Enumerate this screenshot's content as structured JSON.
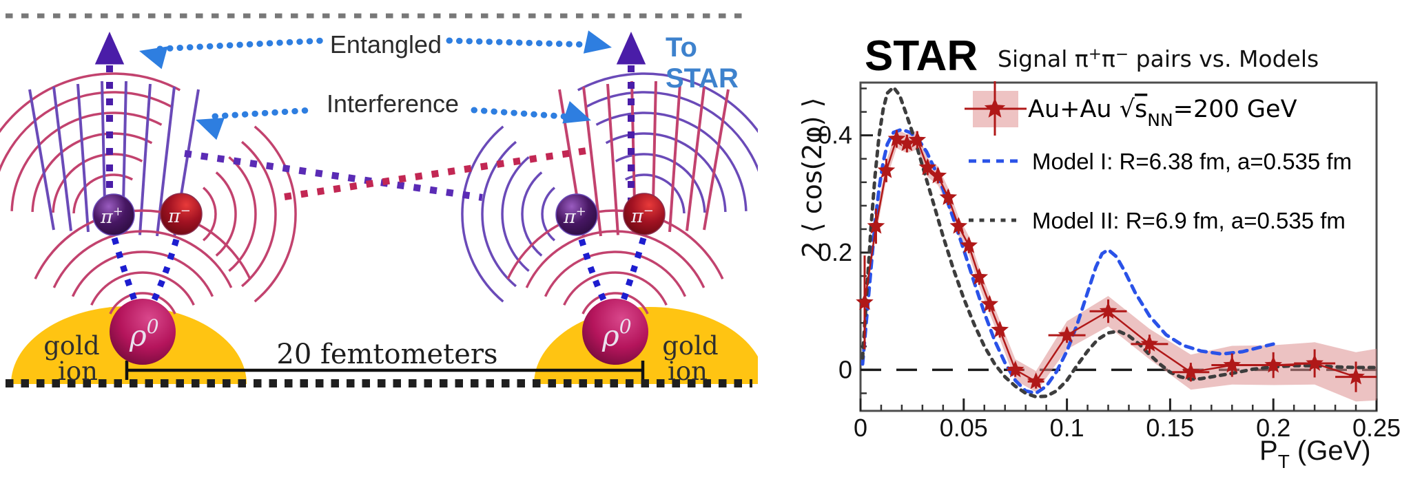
{
  "figure": {
    "background": "#ffffff"
  },
  "diagram": {
    "entangled_label": "Entangled",
    "interference_label": "Interference",
    "to_star_line1": "To",
    "to_star_line2": "STAR",
    "gold_ion_word1": "gold",
    "gold_ion_word2": "ion",
    "distance_label": "20 femtometers",
    "rho_base": "ρ",
    "rho_sup": "0",
    "pi_plus_base": "π",
    "pi_plus_sup": "+",
    "pi_minus_base": "π",
    "pi_minus_sup": "−",
    "colors": {
      "gold": "#FFC412",
      "wave_red": "#c2426e",
      "wave_purple": "#6a4ab8",
      "arrow_blue": "#2e7ee0",
      "arrow_purple": "#4a1da8",
      "cross_red": "#c22753",
      "cross_purple": "#5a2bb5",
      "funnel_blue": "#1d1dcf",
      "to_star_blue": "#3e82cd",
      "label_dark": "#2b2b2b"
    }
  },
  "chart": {
    "title": "STAR",
    "subtitle_pre": "Signal π",
    "subtitle_sup1": "+",
    "subtitle_mid": "π",
    "subtitle_sup2": "−",
    "subtitle_post": " pairs vs. Models",
    "ylabel": "2 ⟨ cos(2φ) ⟩",
    "xlabel_main": "P",
    "xlabel_sub": "T",
    "xlabel_rest": " (GeV)",
    "legend": [
      {
        "pre": "Au+Au √",
        "s": "s",
        "sub": "NN",
        "post": "=200 GeV"
      },
      {
        "text": "Model I: R=6.38 fm, a=0.535 fm"
      },
      {
        "text": "Model II: R=6.9 fm, a=0.535 fm"
      }
    ]
  },
  "chart_data": {
    "type": "line",
    "title": "STAR  Signal π⁺π⁻ pairs vs. Models",
    "xlabel": "P_T (GeV)",
    "ylabel": "2 ⟨ cos(2φ) ⟩",
    "xlim": [
      0,
      0.25
    ],
    "ylim": [
      -0.07,
      0.49
    ],
    "grid": false,
    "legend_position": "top-right-inside",
    "zero_line": true,
    "xticks": {
      "major": [
        {
          "v": 0,
          "label": "0"
        },
        {
          "v": 0.05,
          "label": "0.05"
        },
        {
          "v": 0.1,
          "label": "0.1"
        },
        {
          "v": 0.15,
          "label": "0.15"
        },
        {
          "v": 0.2,
          "label": "0.2"
        },
        {
          "v": 0.25,
          "label": "0.25"
        }
      ],
      "minor_step": 0.01
    },
    "yticks": {
      "major": [
        {
          "v": 0,
          "label": "0"
        },
        {
          "v": 0.2,
          "label": "0.2"
        },
        {
          "v": 0.4,
          "label": "0.4"
        }
      ],
      "minor_step": 0.04
    },
    "series": [
      {
        "name": "Au+Au √s_NN=200 GeV",
        "type": "data-with-band",
        "color": "#b01818",
        "band_color": "#dd8f8f",
        "points": [
          {
            "pt": 0.002,
            "v": 0.115,
            "ex": 0,
            "ey": 0.08,
            "sys": 0.015
          },
          {
            "pt": 0.0075,
            "v": 0.245,
            "ex": 0,
            "ey": 0.03,
            "sys": 0.015
          },
          {
            "pt": 0.0125,
            "v": 0.34,
            "ex": 0,
            "ey": 0.02,
            "sys": 0.016
          },
          {
            "pt": 0.0175,
            "v": 0.394,
            "ex": 0,
            "ey": 0.015,
            "sys": 0.016
          },
          {
            "pt": 0.0225,
            "v": 0.386,
            "ex": 0,
            "ey": 0.015,
            "sys": 0.016
          },
          {
            "pt": 0.0275,
            "v": 0.392,
            "ex": 0,
            "ey": 0.015,
            "sys": 0.016
          },
          {
            "pt": 0.0325,
            "v": 0.345,
            "ex": 0,
            "ey": 0.013,
            "sys": 0.016
          },
          {
            "pt": 0.0375,
            "v": 0.331,
            "ex": 0,
            "ey": 0.013,
            "sys": 0.016
          },
          {
            "pt": 0.0425,
            "v": 0.294,
            "ex": 0,
            "ey": 0.013,
            "sys": 0.016
          },
          {
            "pt": 0.0475,
            "v": 0.245,
            "ex": 0,
            "ey": 0.013,
            "sys": 0.016
          },
          {
            "pt": 0.0525,
            "v": 0.212,
            "ex": 0,
            "ey": 0.013,
            "sys": 0.016
          },
          {
            "pt": 0.0575,
            "v": 0.158,
            "ex": 0,
            "ey": 0.013,
            "sys": 0.016
          },
          {
            "pt": 0.0625,
            "v": 0.112,
            "ex": 0,
            "ey": 0.013,
            "sys": 0.016
          },
          {
            "pt": 0.0675,
            "v": 0.068,
            "ex": 0,
            "ey": 0.013,
            "sys": 0.016
          },
          {
            "pt": 0.075,
            "v": 0.0,
            "ex": 0.004,
            "ey": 0.012,
            "sys": 0.018
          },
          {
            "pt": 0.085,
            "v": -0.02,
            "ex": 0.004,
            "ey": 0.012,
            "sys": 0.018
          },
          {
            "pt": 0.1,
            "v": 0.059,
            "ex": 0.009,
            "ey": 0.013,
            "sys": 0.024
          },
          {
            "pt": 0.12,
            "v": 0.1,
            "ex": 0.009,
            "ey": 0.02,
            "sys": 0.026
          },
          {
            "pt": 0.14,
            "v": 0.044,
            "ex": 0.009,
            "ey": 0.016,
            "sys": 0.026
          },
          {
            "pt": 0.16,
            "v": -0.004,
            "ex": 0.009,
            "ey": 0.016,
            "sys": 0.03
          },
          {
            "pt": 0.18,
            "v": 0.008,
            "ex": 0.01,
            "ey": 0.02,
            "sys": 0.033
          },
          {
            "pt": 0.2,
            "v": 0.008,
            "ex": 0.01,
            "ey": 0.022,
            "sys": 0.034
          },
          {
            "pt": 0.22,
            "v": 0.011,
            "ex": 0.01,
            "ey": 0.024,
            "sys": 0.036
          },
          {
            "pt": 0.24,
            "v": -0.012,
            "ex": 0.01,
            "ey": 0.026,
            "sys": 0.042
          }
        ],
        "band_tail": {
          "pt": 0.25,
          "v": -0.008,
          "sys": 0.044
        }
      },
      {
        "name": "Model I: R=6.38 fm, a=0.535 fm",
        "type": "model",
        "color": "#2a52e8",
        "dash": "11 9",
        "points": [
          [
            0.001,
            0.01
          ],
          [
            0.003,
            0.09
          ],
          [
            0.005,
            0.17
          ],
          [
            0.007,
            0.25
          ],
          [
            0.009,
            0.31
          ],
          [
            0.011,
            0.355
          ],
          [
            0.013,
            0.385
          ],
          [
            0.016,
            0.405
          ],
          [
            0.02,
            0.41
          ],
          [
            0.024,
            0.405
          ],
          [
            0.028,
            0.393
          ],
          [
            0.032,
            0.372
          ],
          [
            0.036,
            0.342
          ],
          [
            0.04,
            0.308
          ],
          [
            0.045,
            0.258
          ],
          [
            0.05,
            0.205
          ],
          [
            0.055,
            0.15
          ],
          [
            0.06,
            0.097
          ],
          [
            0.065,
            0.05
          ],
          [
            0.07,
            0.012
          ],
          [
            0.075,
            -0.018
          ],
          [
            0.08,
            -0.036
          ],
          [
            0.085,
            -0.04
          ],
          [
            0.09,
            -0.028
          ],
          [
            0.095,
            -0.003
          ],
          [
            0.1,
            0.032
          ],
          [
            0.105,
            0.078
          ],
          [
            0.11,
            0.132
          ],
          [
            0.114,
            0.175
          ],
          [
            0.117,
            0.198
          ],
          [
            0.12,
            0.205
          ],
          [
            0.124,
            0.193
          ],
          [
            0.128,
            0.168
          ],
          [
            0.133,
            0.132
          ],
          [
            0.14,
            0.092
          ],
          [
            0.148,
            0.06
          ],
          [
            0.156,
            0.042
          ],
          [
            0.165,
            0.032
          ],
          [
            0.175,
            0.027
          ],
          [
            0.185,
            0.031
          ],
          [
            0.193,
            0.038
          ],
          [
            0.2,
            0.044
          ]
        ]
      },
      {
        "name": "Model II: R=6.9 fm, a=0.535 fm",
        "type": "model",
        "color": "#3d3d3d",
        "dash": "7 8.5",
        "points": [
          [
            0.001,
            0.02
          ],
          [
            0.003,
            0.13
          ],
          [
            0.005,
            0.24
          ],
          [
            0.007,
            0.33
          ],
          [
            0.009,
            0.4
          ],
          [
            0.011,
            0.445
          ],
          [
            0.013,
            0.472
          ],
          [
            0.016,
            0.482
          ],
          [
            0.019,
            0.468
          ],
          [
            0.022,
            0.438
          ],
          [
            0.026,
            0.396
          ],
          [
            0.03,
            0.348
          ],
          [
            0.035,
            0.288
          ],
          [
            0.04,
            0.228
          ],
          [
            0.045,
            0.172
          ],
          [
            0.05,
            0.122
          ],
          [
            0.055,
            0.078
          ],
          [
            0.06,
            0.04
          ],
          [
            0.065,
            0.01
          ],
          [
            0.07,
            -0.012
          ],
          [
            0.075,
            -0.028
          ],
          [
            0.08,
            -0.04
          ],
          [
            0.085,
            -0.046
          ],
          [
            0.09,
            -0.045
          ],
          [
            0.095,
            -0.036
          ],
          [
            0.1,
            -0.018
          ],
          [
            0.105,
            0.008
          ],
          [
            0.11,
            0.032
          ],
          [
            0.115,
            0.052
          ],
          [
            0.12,
            0.063
          ],
          [
            0.125,
            0.066
          ],
          [
            0.13,
            0.058
          ],
          [
            0.135,
            0.044
          ],
          [
            0.14,
            0.026
          ],
          [
            0.145,
            0.01
          ],
          [
            0.15,
            -0.004
          ],
          [
            0.155,
            -0.012
          ],
          [
            0.16,
            -0.016
          ],
          [
            0.165,
            -0.015
          ],
          [
            0.17,
            -0.012
          ],
          [
            0.18,
            -0.006
          ],
          [
            0.19,
            0.001
          ],
          [
            0.2,
            0.005
          ],
          [
            0.21,
            0.007
          ],
          [
            0.22,
            0.007
          ],
          [
            0.23,
            0.005
          ],
          [
            0.24,
            0.004
          ],
          [
            0.25,
            0.004
          ]
        ]
      }
    ]
  }
}
